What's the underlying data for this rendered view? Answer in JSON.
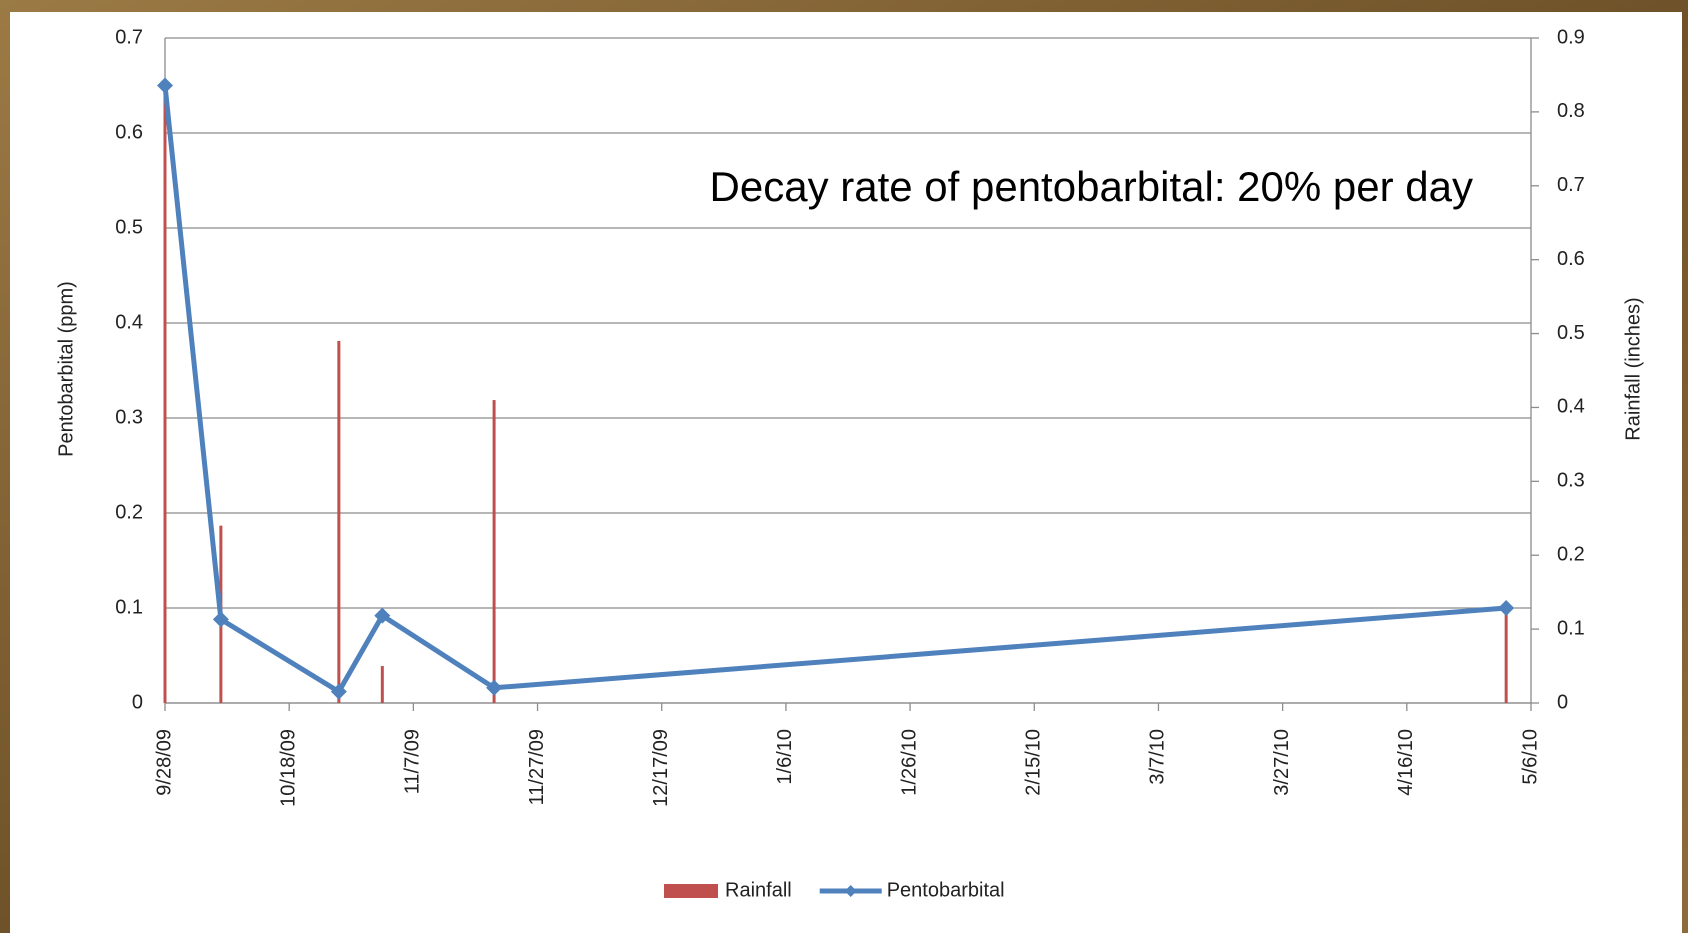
{
  "chart_data": {
    "type": "bar-line",
    "annotation": "Decay rate of pentobarbital: 20% per day",
    "y_label": "Pentobarbital (ppm)",
    "y2_label": "Rainfall (inches)",
    "x": [
      "9/28/09",
      "10/7/09",
      "10/26/09",
      "11/2/09",
      "11/20/09",
      "5/2/10"
    ],
    "xlim": [
      "9/28/09",
      "5/6/10"
    ],
    "xticks": [
      "9/28/09",
      "10/18/09",
      "11/7/09",
      "11/27/09",
      "12/17/09",
      "1/6/10",
      "1/26/10",
      "2/15/10",
      "3/7/10",
      "3/27/10",
      "4/16/10",
      "5/6/10"
    ],
    "ylim": [
      0,
      0.7
    ],
    "yticks": [
      0,
      0.1,
      0.2,
      0.3,
      0.4,
      0.5,
      0.6,
      0.7
    ],
    "y2lim": [
      0,
      0.9
    ],
    "y2ticks": [
      0,
      0.1,
      0.2,
      0.3,
      0.4,
      0.5,
      0.6,
      0.7,
      0.8,
      0.9
    ],
    "grid": true,
    "legend": "bottom",
    "series": [
      {
        "name": "Rainfall",
        "type": "bar",
        "axis": "y2",
        "color": "#c0504d",
        "values": [
          0.84,
          0.24,
          0.49,
          0.05,
          0.41,
          0.13
        ]
      },
      {
        "name": "Pentobarbital",
        "type": "line",
        "axis": "y",
        "color": "#4f81bd",
        "values": [
          0.65,
          0.088,
          0.012,
          0.092,
          0.016,
          0.1
        ]
      }
    ]
  }
}
